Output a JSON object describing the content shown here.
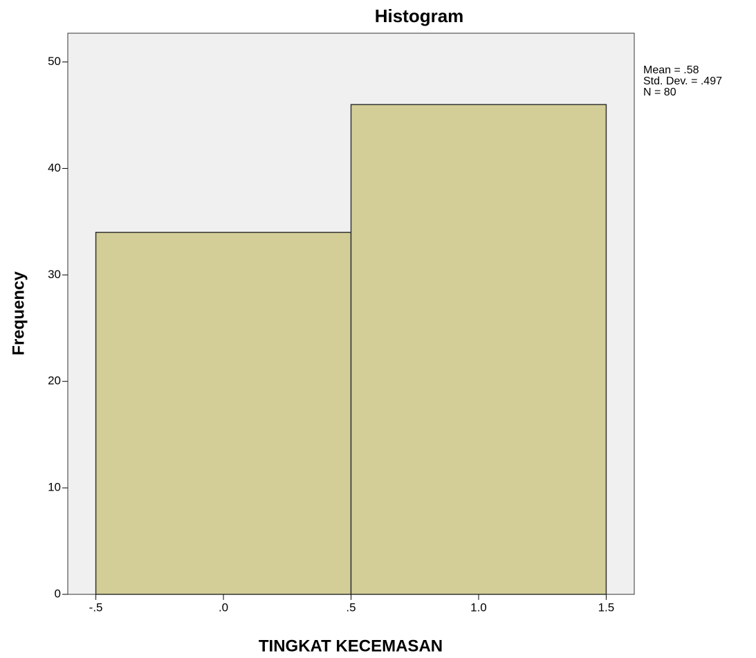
{
  "chart_data": {
    "type": "histogram",
    "title": "Histogram",
    "x_label": "TINGKAT KECEMASAN",
    "y_label": "Frequency",
    "bins": [
      -0.5,
      0.5,
      1.5
    ],
    "counts": [
      34,
      46
    ],
    "color": "#d3ce97",
    "edge_color": "#333333",
    "background": "#f0f0f0",
    "xlim": [
      -0.61,
      1.61
    ],
    "ylim": [
      0,
      52.7
    ],
    "xticks": [
      {
        "value": -0.5,
        "label": "-.5"
      },
      {
        "value": 0,
        "label": ".0"
      },
      {
        "value": 0.5,
        "label": ".5"
      },
      {
        "value": 1,
        "label": "1.0"
      },
      {
        "value": 1.5,
        "label": "1.5"
      }
    ],
    "yticks": [
      0,
      10,
      20,
      30,
      40,
      50
    ],
    "grid": false,
    "annotations": [
      "Mean = .58",
      "Std. Dev. = .497",
      "N = 80"
    ]
  }
}
